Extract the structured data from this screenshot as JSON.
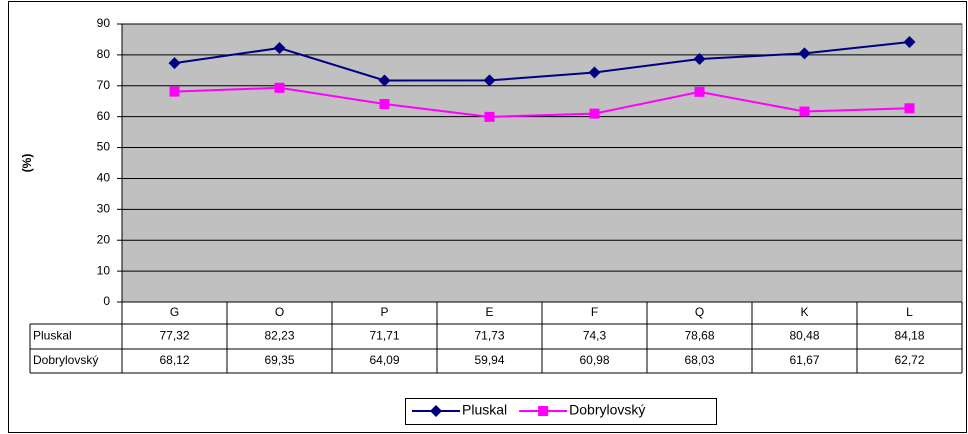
{
  "chart_data": {
    "type": "line",
    "y_label": "(%)",
    "categories": [
      "G",
      "O",
      "P",
      "E",
      "F",
      "Q",
      "K",
      "L"
    ],
    "series": [
      {
        "name": "Pluskal",
        "color": "#000080",
        "marker": "diamond",
        "values": [
          77.32,
          82.23,
          71.71,
          71.73,
          74.3,
          78.68,
          80.48,
          84.18
        ],
        "value_labels": [
          "77,32",
          "82,23",
          "71,71",
          "71,73",
          "74,3",
          "78,68",
          "80,48",
          "84,18"
        ]
      },
      {
        "name": "Dobrylovský",
        "color": "#ff00ff",
        "marker": "square",
        "values": [
          68.12,
          69.35,
          64.09,
          59.94,
          60.98,
          68.03,
          61.67,
          62.72
        ],
        "value_labels": [
          "68,12",
          "69,35",
          "64,09",
          "59,94",
          "60,98",
          "68,03",
          "61,67",
          "62,72"
        ]
      }
    ],
    "ylim": [
      0,
      90
    ],
    "yticks": [
      0,
      10,
      20,
      30,
      40,
      50,
      60,
      70,
      80,
      90
    ],
    "grid": true,
    "plot_background": "#c0c0c0",
    "legend": "bottom"
  }
}
